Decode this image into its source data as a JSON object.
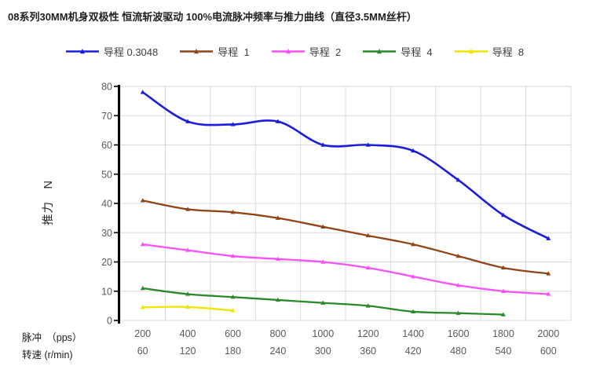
{
  "title": "08系列30MM机身双极性 恒流斩波驱动 100%电流脉冲频率与推力曲线（直径3.5MM丝杆）",
  "chart_data": {
    "type": "line",
    "smooth": true,
    "legend_position": "top",
    "grid": {
      "horizontal": true,
      "vertical": true,
      "color": "#d9d9d9"
    },
    "y_axis": {
      "label": "推力　N",
      "min": 0,
      "max": 80,
      "step": 10,
      "tick_labels": [
        0,
        10,
        20,
        30,
        40,
        50,
        60,
        70,
        80
      ]
    },
    "x_axis": {
      "row1_label": "脉冲　（pps）",
      "row2_label": "转速 (r/min)",
      "row1_ticks": [
        200,
        400,
        600,
        800,
        1000,
        1200,
        1400,
        1600,
        1800,
        2000
      ],
      "row2_ticks": [
        60,
        120,
        180,
        240,
        300,
        360,
        420,
        480,
        540,
        600
      ]
    },
    "series": [
      {
        "name": "导程 0.3048",
        "color": "#1c1ce0",
        "values": [
          78,
          68,
          67,
          68,
          60,
          60,
          58,
          48,
          36,
          28
        ]
      },
      {
        "name": "导程  1",
        "color": "#8f4518",
        "values": [
          41,
          38,
          37,
          35,
          32,
          29,
          26,
          22,
          18,
          16
        ]
      },
      {
        "name": "导程  2",
        "color": "#fa50fa",
        "values": [
          26,
          24,
          22,
          21,
          20,
          18,
          15,
          12,
          10,
          9
        ]
      },
      {
        "name": "导程  4",
        "color": "#2a8a2a",
        "values": [
          11,
          9,
          8,
          7,
          6,
          5,
          3,
          2.5,
          2
        ]
      },
      {
        "name": "导程  8",
        "color": "#efe600",
        "values": [
          4.5,
          4.6,
          3.4
        ]
      }
    ]
  },
  "colors": {
    "title_text": "#1f1f1f",
    "tick_text": "#595959",
    "axis_line": "#000000",
    "gridline": "#d9d9d9",
    "bottom_row_text": "#1a1a1a"
  }
}
